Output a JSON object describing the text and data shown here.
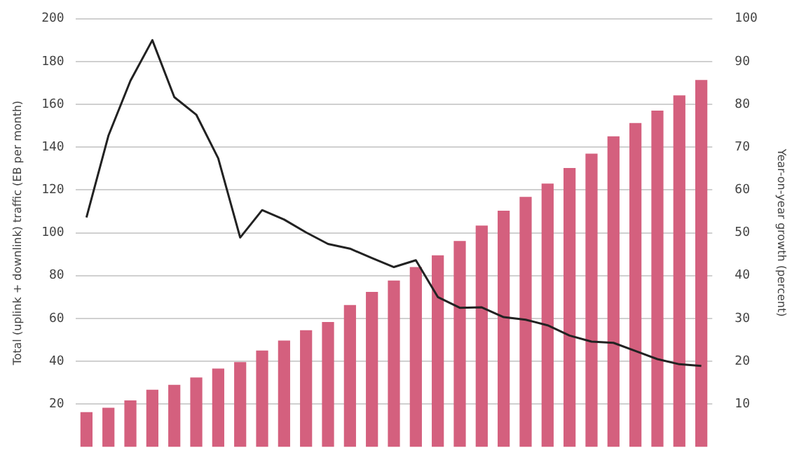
{
  "chart_data": {
    "type": "bar",
    "ylabel": "Total (uplink + downlink) traffic (EB per month)",
    "y2label": "Year-on-year growth (percent)",
    "categories": [
      null,
      null,
      null,
      null,
      null,
      null,
      null,
      null,
      null,
      null,
      null,
      null,
      null,
      null,
      null,
      null,
      null,
      null,
      null,
      null,
      null,
      null,
      null,
      null,
      null,
      null,
      null,
      null,
      null
    ],
    "series": [
      {
        "color": "#d4607e",
        "values": [
          16.2,
          18.3,
          21.7,
          26.7,
          29,
          32.4,
          36.6,
          39.6,
          45,
          49.7,
          54.5,
          58.3,
          66.3,
          72.4,
          77.7,
          84,
          89.5,
          96.2,
          103.4,
          110.3,
          116.8,
          123,
          130.3,
          137,
          145.1,
          151.3,
          157.1,
          164.2,
          171.4
        ]
      },
      {
        "type": "line",
        "axis": "y2",
        "color": "#222222",
        "values": [
          53.6,
          72.7,
          85.5,
          95,
          81.7,
          77.6,
          67.4,
          48.9,
          55.3,
          53.1,
          50.1,
          47.4,
          46.3,
          44.1,
          42,
          43.6,
          35,
          32.5,
          32.6,
          30.3,
          29.7,
          28.4,
          26,
          24.6,
          24.3,
          22.4,
          20.5,
          19.3,
          18.9
        ]
      }
    ],
    "ylim": [
      0,
      200
    ],
    "yticks": [
      20,
      40,
      60,
      80,
      100,
      120,
      140,
      160,
      180,
      200
    ],
    "y2lim": [
      0,
      100
    ],
    "y2ticks": [
      10,
      20,
      30,
      40,
      50,
      60,
      70,
      80,
      90,
      100
    ],
    "grid": "y",
    "legend": false,
    "marker": "none",
    "line_style": "solid"
  }
}
